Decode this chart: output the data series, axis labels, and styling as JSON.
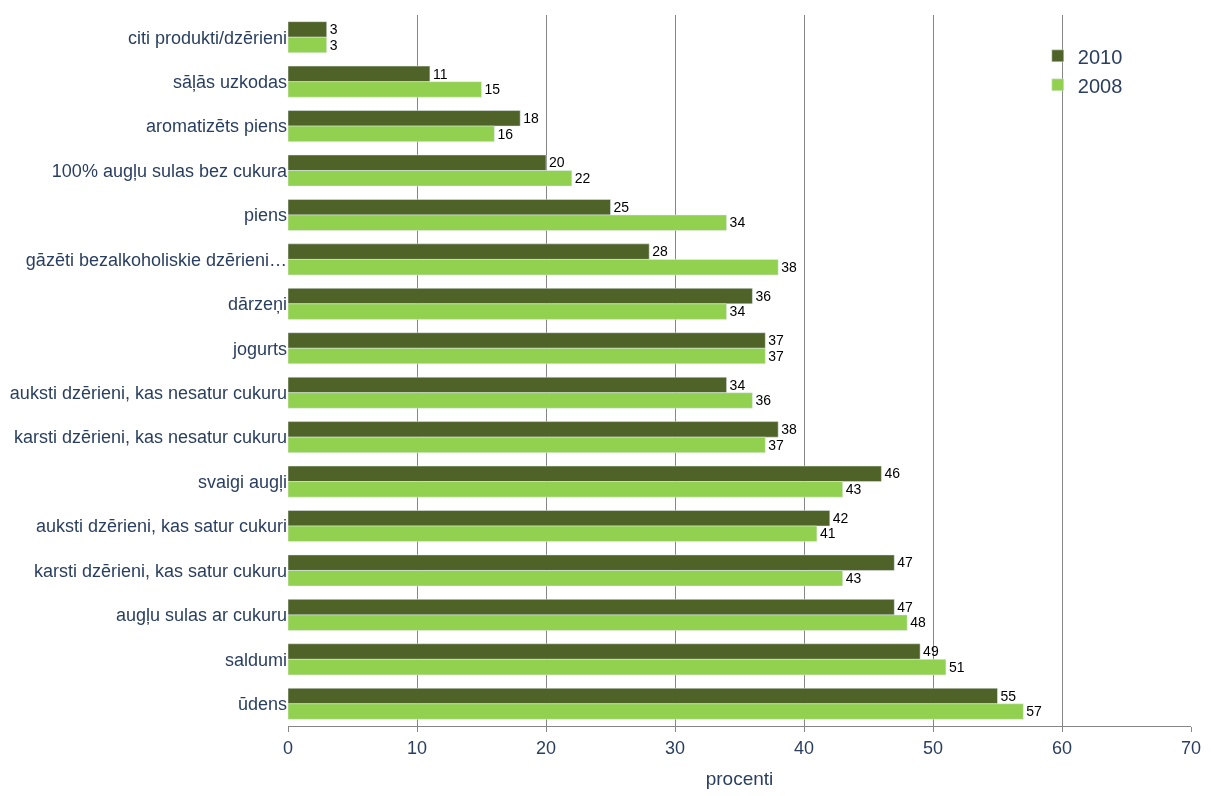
{
  "chart_data": {
    "type": "bar",
    "orientation": "horizontal",
    "xlabel": "procenti",
    "categories": [
      "citi produkti/dzērieni",
      "sāļās uzkodas",
      "aromatizēts piens",
      "100% augļu sulas bez cukura",
      "piens",
      "gāzēti bezalkoholiskie dzērieni…",
      "dārzeņi",
      "jogurts",
      "auksti dzērieni, kas nesatur cukuru",
      "karsti dzērieni, kas nesatur cukuru",
      "svaigi augļi",
      "auksti dzērieni, kas satur cukuri",
      "karsti dzērieni, kas satur cukuru",
      "augļu sulas ar cukuru",
      "saldumi",
      "ūdens"
    ],
    "series": [
      {
        "name": "2010",
        "color": "#4f6228",
        "values": [
          3,
          11,
          18,
          20,
          25,
          28,
          36,
          37,
          34,
          38,
          46,
          42,
          47,
          47,
          49,
          55
        ]
      },
      {
        "name": "2008",
        "color": "#92d050",
        "values": [
          3,
          15,
          16,
          22,
          34,
          38,
          34,
          37,
          36,
          37,
          43,
          41,
          43,
          48,
          51,
          57
        ]
      }
    ],
    "xlim": [
      0,
      70
    ],
    "xticks": [
      0,
      10,
      20,
      30,
      40,
      50,
      60,
      70
    ],
    "grid": "x",
    "legend": "top right",
    "data_labels": true
  }
}
